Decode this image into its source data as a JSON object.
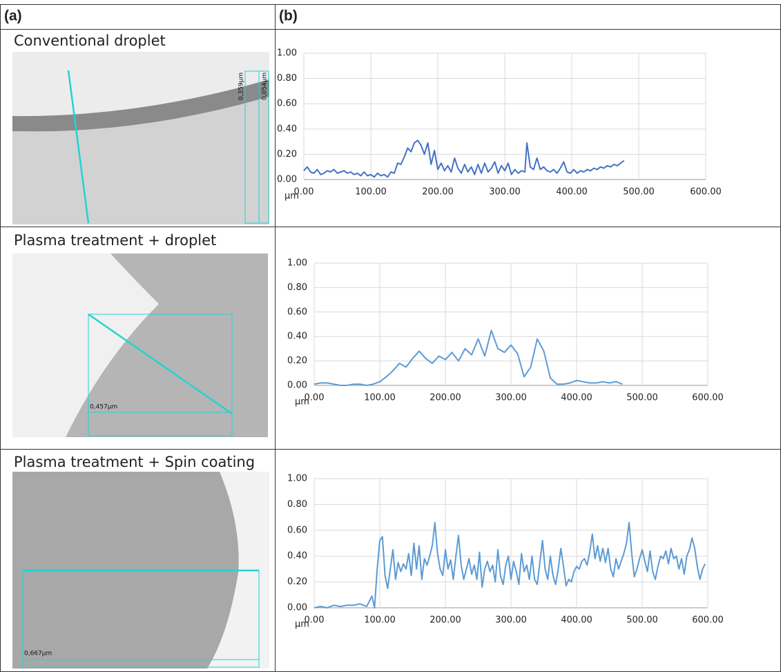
{
  "panels": {
    "a": "(a)",
    "b": "(b)"
  },
  "rows": [
    {
      "label": "Conventional droplet",
      "image_text": [
        "0,359µm",
        "0,054µm"
      ]
    },
    {
      "label": "Plasma treatment + droplet",
      "image_text": [
        "0,457µm"
      ]
    },
    {
      "label": "Plasma treatment + Spin coating",
      "image_text": [
        "0,667µm"
      ]
    }
  ],
  "chart_data": [
    {
      "type": "line",
      "x_label": "µm",
      "color": "#4472c4",
      "x": [
        0,
        5,
        10,
        15,
        20,
        25,
        30,
        35,
        40,
        45,
        50,
        55,
        60,
        65,
        70,
        75,
        80,
        85,
        90,
        95,
        100,
        105,
        110,
        115,
        120,
        125,
        130,
        135,
        140,
        145,
        150,
        155,
        160,
        165,
        170,
        175,
        180,
        185,
        190,
        195,
        200,
        205,
        210,
        215,
        220,
        225,
        230,
        235,
        240,
        245,
        250,
        255,
        260,
        265,
        270,
        275,
        280,
        285,
        290,
        295,
        300,
        305,
        310,
        315,
        320,
        325,
        330,
        333,
        338,
        343,
        348,
        353,
        358,
        363,
        368,
        373,
        378,
        383,
        388,
        393,
        398,
        403,
        408,
        413,
        418,
        423,
        428,
        433,
        438,
        443,
        448,
        453,
        458,
        463,
        468,
        473,
        478
      ],
      "values": [
        0.07,
        0.1,
        0.06,
        0.05,
        0.08,
        0.04,
        0.05,
        0.07,
        0.06,
        0.08,
        0.05,
        0.06,
        0.07,
        0.05,
        0.06,
        0.04,
        0.05,
        0.03,
        0.06,
        0.03,
        0.04,
        0.02,
        0.05,
        0.03,
        0.04,
        0.02,
        0.06,
        0.05,
        0.13,
        0.12,
        0.18,
        0.25,
        0.22,
        0.29,
        0.31,
        0.27,
        0.2,
        0.29,
        0.12,
        0.23,
        0.08,
        0.13,
        0.07,
        0.11,
        0.06,
        0.17,
        0.09,
        0.05,
        0.12,
        0.06,
        0.1,
        0.04,
        0.12,
        0.05,
        0.13,
        0.06,
        0.09,
        0.14,
        0.05,
        0.11,
        0.07,
        0.13,
        0.04,
        0.08,
        0.05,
        0.07,
        0.06,
        0.29,
        0.1,
        0.08,
        0.17,
        0.08,
        0.1,
        0.07,
        0.06,
        0.08,
        0.05,
        0.09,
        0.14,
        0.06,
        0.05,
        0.08,
        0.05,
        0.07,
        0.06,
        0.08,
        0.07,
        0.09,
        0.08,
        0.1,
        0.09,
        0.11,
        0.1,
        0.12,
        0.11,
        0.13,
        0.15
      ],
      "xlim": [
        0,
        600
      ],
      "xticks": [
        {
          "value": 0,
          "label": "0.00"
        },
        {
          "value": 100,
          "label": "100.00"
        },
        {
          "value": 200,
          "label": "200.00"
        },
        {
          "value": 300,
          "label": "300.00"
        },
        {
          "value": 400,
          "label": "400.00"
        },
        {
          "value": 500,
          "label": "500.00"
        },
        {
          "value": 600,
          "label": "600.00"
        }
      ],
      "ylim": [
        0,
        1
      ],
      "yticks": [
        {
          "value": 0,
          "label": "0.00"
        },
        {
          "value": 0.2,
          "label": "0.20"
        },
        {
          "value": 0.4,
          "label": "0.40"
        },
        {
          "value": 0.6,
          "label": "0.60"
        },
        {
          "value": 0.8,
          "label": "0.80"
        },
        {
          "value": 1,
          "label": "1.00"
        }
      ],
      "grid": true
    },
    {
      "type": "line",
      "x_label": "µm",
      "color": "#5b9bd5",
      "x": [
        0,
        10,
        20,
        30,
        40,
        50,
        60,
        70,
        80,
        90,
        100,
        110,
        120,
        130,
        140,
        150,
        160,
        170,
        180,
        190,
        200,
        210,
        220,
        230,
        240,
        250,
        260,
        270,
        280,
        290,
        300,
        310,
        320,
        330,
        340,
        350,
        360,
        370,
        380,
        390,
        400,
        410,
        420,
        430,
        440,
        450,
        460,
        470
      ],
      "values": [
        0.01,
        0.02,
        0.02,
        0.01,
        0,
        0,
        0.01,
        0.01,
        0,
        0.01,
        0.03,
        0.07,
        0.12,
        0.18,
        0.15,
        0.22,
        0.28,
        0.22,
        0.18,
        0.24,
        0.21,
        0.27,
        0.2,
        0.3,
        0.25,
        0.38,
        0.24,
        0.45,
        0.3,
        0.27,
        0.33,
        0.26,
        0.07,
        0.15,
        0.38,
        0.28,
        0.06,
        0.01,
        0.01,
        0.02,
        0.04,
        0.03,
        0.02,
        0.02,
        0.03,
        0.02,
        0.03,
        0.01
      ],
      "xlim": [
        0,
        600
      ],
      "xticks": [
        {
          "value": 0,
          "label": "0.00"
        },
        {
          "value": 100,
          "label": "100.00"
        },
        {
          "value": 200,
          "label": "200.00"
        },
        {
          "value": 300,
          "label": "300.00"
        },
        {
          "value": 400,
          "label": "400.00"
        },
        {
          "value": 500,
          "label": "500.00"
        },
        {
          "value": 600,
          "label": "600.00"
        }
      ],
      "ylim": [
        0,
        1
      ],
      "yticks": [
        {
          "value": 0,
          "label": "0.00"
        },
        {
          "value": 0.2,
          "label": "0.20"
        },
        {
          "value": 0.4,
          "label": "0.40"
        },
        {
          "value": 0.6,
          "label": "0.60"
        },
        {
          "value": 0.8,
          "label": "0.80"
        },
        {
          "value": 1,
          "label": "1.00"
        }
      ],
      "grid": true
    },
    {
      "type": "line",
      "x_label": "µm",
      "color": "#5b9bd5",
      "x": [
        0,
        10,
        20,
        30,
        40,
        50,
        60,
        70,
        80,
        88,
        92,
        96,
        100,
        104,
        108,
        112,
        116,
        120,
        124,
        128,
        132,
        136,
        140,
        144,
        148,
        152,
        156,
        160,
        164,
        168,
        172,
        176,
        180,
        184,
        188,
        192,
        196,
        200,
        204,
        208,
        212,
        216,
        220,
        224,
        228,
        232,
        236,
        240,
        244,
        248,
        252,
        256,
        260,
        264,
        268,
        272,
        276,
        280,
        284,
        288,
        292,
        296,
        300,
        304,
        308,
        312,
        316,
        320,
        324,
        328,
        332,
        336,
        340,
        344,
        348,
        352,
        356,
        360,
        364,
        368,
        372,
        376,
        380,
        384,
        388,
        392,
        396,
        400,
        404,
        408,
        412,
        416,
        420,
        424,
        428,
        432,
        436,
        440,
        444,
        448,
        452,
        456,
        460,
        464,
        468,
        472,
        476,
        480,
        484,
        488,
        492,
        496,
        500,
        504,
        508,
        512,
        516,
        520,
        524,
        528,
        532,
        536,
        540,
        544,
        548,
        552,
        556,
        560,
        564,
        568,
        572,
        576,
        580,
        584,
        588,
        592,
        596
      ],
      "values": [
        0,
        0.01,
        0,
        0.02,
        0.01,
        0.02,
        0.02,
        0.03,
        0.01,
        0.09,
        0,
        0.3,
        0.52,
        0.55,
        0.25,
        0.15,
        0.3,
        0.45,
        0.22,
        0.35,
        0.28,
        0.34,
        0.3,
        0.42,
        0.25,
        0.5,
        0.3,
        0.48,
        0.22,
        0.38,
        0.33,
        0.4,
        0.48,
        0.66,
        0.42,
        0.3,
        0.25,
        0.45,
        0.3,
        0.37,
        0.22,
        0.4,
        0.56,
        0.33,
        0.22,
        0.3,
        0.38,
        0.26,
        0.33,
        0.22,
        0.43,
        0.16,
        0.3,
        0.36,
        0.28,
        0.33,
        0.2,
        0.45,
        0.25,
        0.18,
        0.33,
        0.4,
        0.22,
        0.36,
        0.28,
        0.18,
        0.42,
        0.28,
        0.33,
        0.22,
        0.4,
        0.22,
        0.18,
        0.35,
        0.52,
        0.3,
        0.22,
        0.4,
        0.25,
        0.18,
        0.3,
        0.46,
        0.32,
        0.17,
        0.22,
        0.2,
        0.28,
        0.32,
        0.3,
        0.36,
        0.38,
        0.33,
        0.43,
        0.57,
        0.38,
        0.48,
        0.36,
        0.46,
        0.35,
        0.46,
        0.3,
        0.24,
        0.38,
        0.3,
        0.36,
        0.42,
        0.5,
        0.66,
        0.42,
        0.24,
        0.3,
        0.38,
        0.45,
        0.36,
        0.28,
        0.44,
        0.28,
        0.22,
        0.32,
        0.4,
        0.38,
        0.44,
        0.34,
        0.46,
        0.38,
        0.4,
        0.3,
        0.38,
        0.26,
        0.4,
        0.45,
        0.54,
        0.46,
        0.32,
        0.22,
        0.3,
        0.34
      ],
      "xlim": [
        0,
        600
      ],
      "xticks": [
        {
          "value": 0,
          "label": "0.00"
        },
        {
          "value": 100,
          "label": "100.00"
        },
        {
          "value": 200,
          "label": "200.00"
        },
        {
          "value": 300,
          "label": "300.00"
        },
        {
          "value": 400,
          "label": "400.00"
        },
        {
          "value": 500,
          "label": "500.00"
        },
        {
          "value": 600,
          "label": "600.00"
        }
      ],
      "ylim": [
        0,
        1
      ],
      "yticks": [
        {
          "value": 0,
          "label": "0.00"
        },
        {
          "value": 0.2,
          "label": "0.20"
        },
        {
          "value": 0.4,
          "label": "0.40"
        },
        {
          "value": 0.6,
          "label": "0.60"
        },
        {
          "value": 0.8,
          "label": "0.80"
        },
        {
          "value": 1,
          "label": "1.00"
        }
      ],
      "grid": true
    }
  ]
}
